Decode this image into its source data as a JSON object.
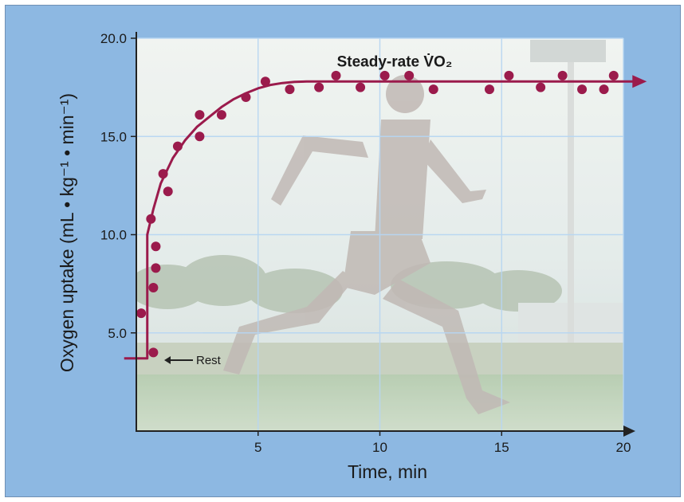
{
  "chart_data": {
    "type": "scatter",
    "title": "",
    "xlabel": "Time, min",
    "ylabel": "Oxygen uptake (mL • kg⁻¹ • min⁻¹)",
    "xlim": [
      0,
      20
    ],
    "ylim": [
      0,
      20
    ],
    "x_ticks": [
      5,
      10,
      15,
      20
    ],
    "y_ticks": [
      5.0,
      10.0,
      15.0,
      20.0
    ],
    "x_tick_labels": [
      "5",
      "10",
      "15",
      "20"
    ],
    "y_tick_labels": [
      "5.0",
      "10.0",
      "15.0",
      "20.0"
    ],
    "grid": true,
    "colors": {
      "series": "#9b1b4c",
      "grid": "#b7d6f2",
      "background": "#8db8e2",
      "axes": "#222222"
    },
    "series": [
      {
        "type": "scatter",
        "points": [
          [
            0.2,
            6.0
          ],
          [
            0.7,
            4.0
          ],
          [
            0.7,
            7.3
          ],
          [
            0.8,
            8.3
          ],
          [
            0.8,
            9.4
          ],
          [
            0.6,
            10.8
          ],
          [
            1.1,
            13.1
          ],
          [
            1.3,
            12.2
          ],
          [
            1.7,
            14.5
          ],
          [
            2.6,
            15.0
          ],
          [
            2.6,
            16.1
          ],
          [
            3.5,
            16.1
          ],
          [
            4.5,
            17.0
          ],
          [
            5.3,
            17.8
          ],
          [
            6.3,
            17.4
          ],
          [
            7.5,
            17.5
          ],
          [
            8.2,
            18.1
          ],
          [
            9.2,
            17.5
          ],
          [
            10.2,
            18.1
          ],
          [
            11.2,
            18.1
          ],
          [
            12.2,
            17.4
          ],
          [
            14.5,
            17.4
          ],
          [
            15.3,
            18.1
          ],
          [
            16.6,
            17.5
          ],
          [
            17.5,
            18.1
          ],
          [
            18.3,
            17.4
          ],
          [
            19.2,
            17.4
          ],
          [
            19.6,
            18.1
          ]
        ]
      },
      {
        "type": "line",
        "points": [
          [
            -0.5,
            3.7
          ],
          [
            0.45,
            3.7
          ],
          [
            0.45,
            10.0
          ],
          [
            0.7,
            11.3
          ],
          [
            1.0,
            12.6
          ],
          [
            1.5,
            13.9
          ],
          [
            2.0,
            14.8
          ],
          [
            2.5,
            15.5
          ],
          [
            3.0,
            16.0
          ],
          [
            3.5,
            16.5
          ],
          [
            4.0,
            16.9
          ],
          [
            4.5,
            17.2
          ],
          [
            5.0,
            17.45
          ],
          [
            5.5,
            17.62
          ],
          [
            6.0,
            17.72
          ],
          [
            6.5,
            17.78
          ],
          [
            7.0,
            17.8
          ],
          [
            20.5,
            17.8
          ]
        ]
      }
    ],
    "annotations": [
      {
        "text": "Steady-rate V̇O₂",
        "x": 8.4,
        "y": 18.8
      },
      {
        "text": "Rest",
        "x": 2.5,
        "y": 3.75
      }
    ]
  }
}
